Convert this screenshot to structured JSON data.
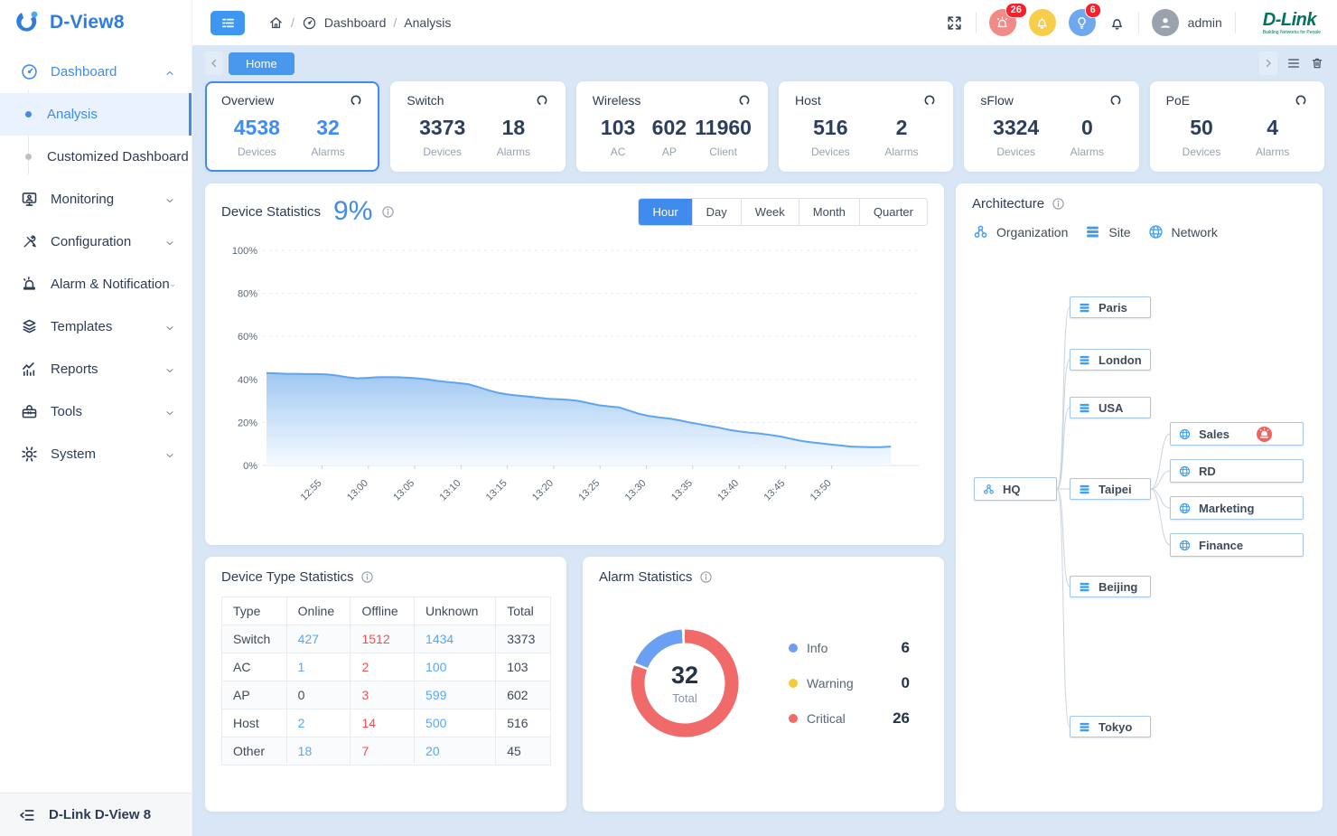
{
  "app": {
    "logo_text": "D-View8",
    "footer_brand": "D-Link D-View 8"
  },
  "header": {
    "breadcrumb": {
      "items": [
        "Dashboard",
        "Analysis"
      ],
      "separator": "/"
    },
    "alarm_badge_count": "26",
    "tip_badge_count": "6",
    "user_name": "admin",
    "brand": {
      "name": "D-Link",
      "tagline": "Building Networks for People"
    }
  },
  "sidebar": {
    "items": [
      {
        "label": "Dashboard",
        "icon": "gauge",
        "expanded": true,
        "active": true,
        "children": [
          {
            "label": "Analysis",
            "active": true
          },
          {
            "label": "Customized Dashboard",
            "active": false
          }
        ]
      },
      {
        "label": "Monitoring",
        "icon": "monitor"
      },
      {
        "label": "Configuration",
        "icon": "tools"
      },
      {
        "label": "Alarm & Notification",
        "icon": "siren"
      },
      {
        "label": "Templates",
        "icon": "stack"
      },
      {
        "label": "Reports",
        "icon": "report"
      },
      {
        "label": "Tools",
        "icon": "toolbox"
      },
      {
        "label": "System",
        "icon": "gear"
      }
    ]
  },
  "tabbar": {
    "tabs": [
      {
        "label": "Home",
        "active": true
      }
    ]
  },
  "stat_cards": [
    {
      "title": "Overview",
      "selected": true,
      "accent": true,
      "stats": [
        {
          "value": "4538",
          "label": "Devices"
        },
        {
          "value": "32",
          "label": "Alarms"
        }
      ]
    },
    {
      "title": "Switch",
      "selected": false,
      "accent": false,
      "stats": [
        {
          "value": "3373",
          "label": "Devices"
        },
        {
          "value": "18",
          "label": "Alarms"
        }
      ]
    },
    {
      "title": "Wireless",
      "selected": false,
      "accent": false,
      "wide": true,
      "stats": [
        {
          "value": "103",
          "label": "AC"
        },
        {
          "value": "602",
          "label": "AP"
        },
        {
          "value": "11960",
          "label": "Client"
        }
      ]
    },
    {
      "title": "Host",
      "selected": false,
      "accent": false,
      "stats": [
        {
          "value": "516",
          "label": "Devices"
        },
        {
          "value": "2",
          "label": "Alarms"
        }
      ]
    },
    {
      "title": "sFlow",
      "selected": false,
      "accent": false,
      "stats": [
        {
          "value": "3324",
          "label": "Devices"
        },
        {
          "value": "0",
          "label": "Alarms"
        }
      ]
    },
    {
      "title": "PoE",
      "selected": false,
      "accent": false,
      "stats": [
        {
          "value": "50",
          "label": "Devices"
        },
        {
          "value": "4",
          "label": "Alarms"
        }
      ]
    }
  ],
  "device_statistics": {
    "title": "Device Statistics",
    "highlight_value": "9%",
    "range_tabs": [
      "Hour",
      "Day",
      "Week",
      "Month",
      "Quarter"
    ],
    "active_tab": "Hour"
  },
  "chart_data": [
    {
      "type": "area",
      "title": "Device Statistics (online rate %)",
      "x_tick_labels": [
        "12:55",
        "13:00",
        "13:05",
        "13:10",
        "13:15",
        "13:20",
        "13:25",
        "13:30",
        "13:35",
        "13:40",
        "13:45",
        "13:50"
      ],
      "x_tick_start_frac": 0.089,
      "x_tick_step_frac": 0.0742,
      "y_ticks": [
        "0%",
        "20%",
        "40%",
        "60%",
        "80%",
        "100%"
      ],
      "ylim": [
        0,
        100
      ],
      "grid": "dashed",
      "legend_position": "none",
      "line_color": "#5fa5ee",
      "fill_top": "#9ac4f1",
      "fill_bottom": "#f3f9ff",
      "values": [
        43,
        42.8,
        42.6,
        42.6,
        42.5,
        42.5,
        42.3,
        41.8,
        41,
        40.5,
        40.7,
        41,
        41.1,
        41,
        40.8,
        40.5,
        40,
        39.3,
        38.8,
        38.3,
        37.8,
        36.5,
        35,
        33.8,
        33,
        32.5,
        32,
        31.5,
        31,
        30.8,
        30.5,
        30,
        29,
        28,
        27.5,
        27,
        25.5,
        24,
        23,
        22.3,
        21.8,
        21,
        20,
        19.2,
        18.3,
        17.5,
        16.5,
        15.8,
        15.2,
        14.8,
        14.2,
        13.5,
        12.5,
        11.5,
        10.8,
        10.3,
        9.8,
        9.3,
        8.8,
        8.6,
        8.5,
        8.5,
        8.8
      ]
    },
    {
      "type": "donut",
      "title": "Alarm Statistics",
      "total": 32,
      "total_label": "Total",
      "segments": [
        {
          "label": "Info",
          "value": 6,
          "color": "#6a9ff4"
        },
        {
          "label": "Warning",
          "value": 0,
          "color": "#f7c73c"
        },
        {
          "label": "Critical",
          "value": 26,
          "color": "#f16a6a"
        }
      ]
    }
  ],
  "device_type_statistics": {
    "title": "Device Type Statistics",
    "columns": [
      "Type",
      "Online",
      "Offline",
      "Unknown",
      "Total"
    ],
    "rows": [
      {
        "type": "Switch",
        "online": "427",
        "offline": "1512",
        "unknown": "1434",
        "total": "3373"
      },
      {
        "type": "AC",
        "online": "1",
        "offline": "2",
        "unknown": "100",
        "total": "103"
      },
      {
        "type": "AP",
        "online": "0",
        "offline": "3",
        "unknown": "599",
        "total": "602"
      },
      {
        "type": "Host",
        "online": "2",
        "offline": "14",
        "unknown": "500",
        "total": "516"
      },
      {
        "type": "Other",
        "online": "18",
        "offline": "7",
        "unknown": "20",
        "total": "45"
      }
    ]
  },
  "alarm_statistics": {
    "title": "Alarm Statistics"
  },
  "architecture": {
    "title": "Architecture",
    "legend": [
      {
        "label": "Organization",
        "icon": "org"
      },
      {
        "label": "Site",
        "icon": "site"
      },
      {
        "label": "Network",
        "icon": "globe"
      }
    ],
    "tree": {
      "root": {
        "label": "HQ",
        "icon": "org"
      },
      "sites": [
        {
          "label": "Paris",
          "icon": "site"
        },
        {
          "label": "London",
          "icon": "site"
        },
        {
          "label": "USA",
          "icon": "site"
        },
        {
          "label": "Taipei",
          "icon": "site",
          "children": [
            {
              "label": "Sales",
              "icon": "globe",
              "alarm": true
            },
            {
              "label": "RD",
              "icon": "globe"
            },
            {
              "label": "Marketing",
              "icon": "globe"
            },
            {
              "label": "Finance",
              "icon": "globe"
            }
          ]
        },
        {
          "label": "Beijing",
          "icon": "site"
        },
        {
          "label": "Tokyo",
          "icon": "site"
        }
      ]
    }
  },
  "colors": {
    "accent": "#3f8cee",
    "link_blue": "#54a8f5",
    "offline_red": "#f15050",
    "badge_red": "#f5222d",
    "critical": "#f16a6a",
    "info": "#6a9ff4",
    "warning": "#f7c73c"
  }
}
